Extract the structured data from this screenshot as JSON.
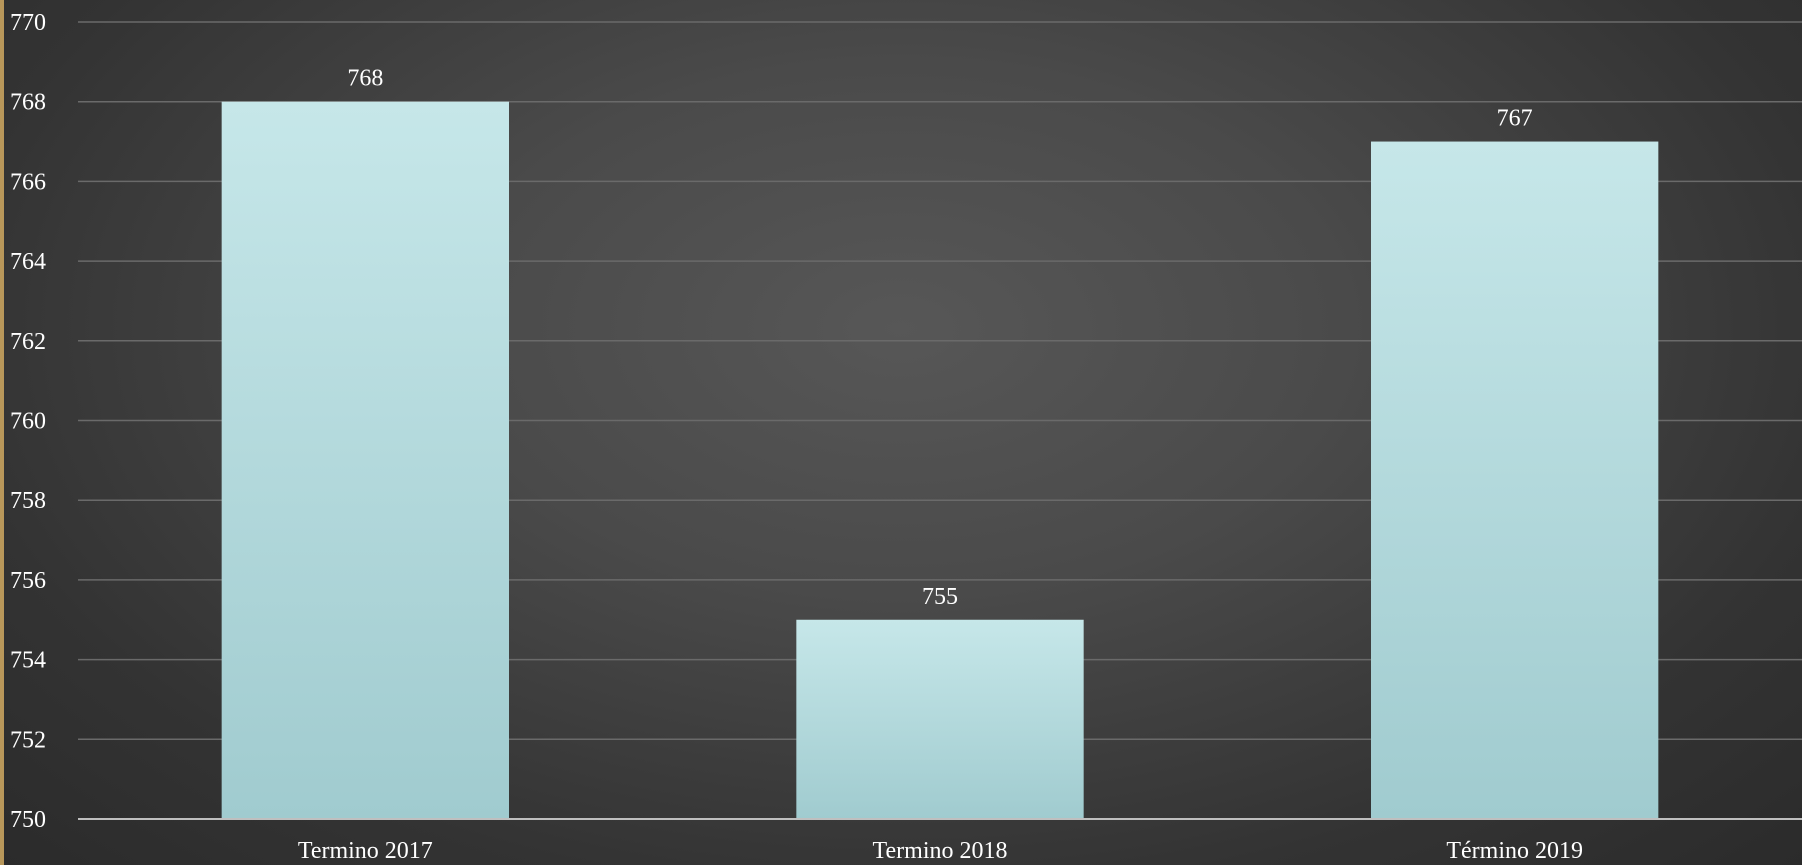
{
  "chart_data": {
    "type": "bar",
    "categories": [
      "Termino 2017",
      "Termino 2018",
      "Término 2019"
    ],
    "values": [
      768,
      755,
      767
    ],
    "data_labels": [
      "768",
      "755",
      "767"
    ],
    "title": "",
    "xlabel": "",
    "ylabel": "",
    "ylim": [
      750,
      770
    ],
    "yticks": [
      750,
      752,
      754,
      756,
      758,
      760,
      762,
      764,
      766,
      768,
      770
    ],
    "grid": true,
    "legend": "none",
    "colors": {
      "bar_top": "#c6e7e9",
      "bar_bottom": "#a0cbcf",
      "grid": "#6a6a6a",
      "axis": "#bfbfbf",
      "text": "#ffffff"
    }
  }
}
